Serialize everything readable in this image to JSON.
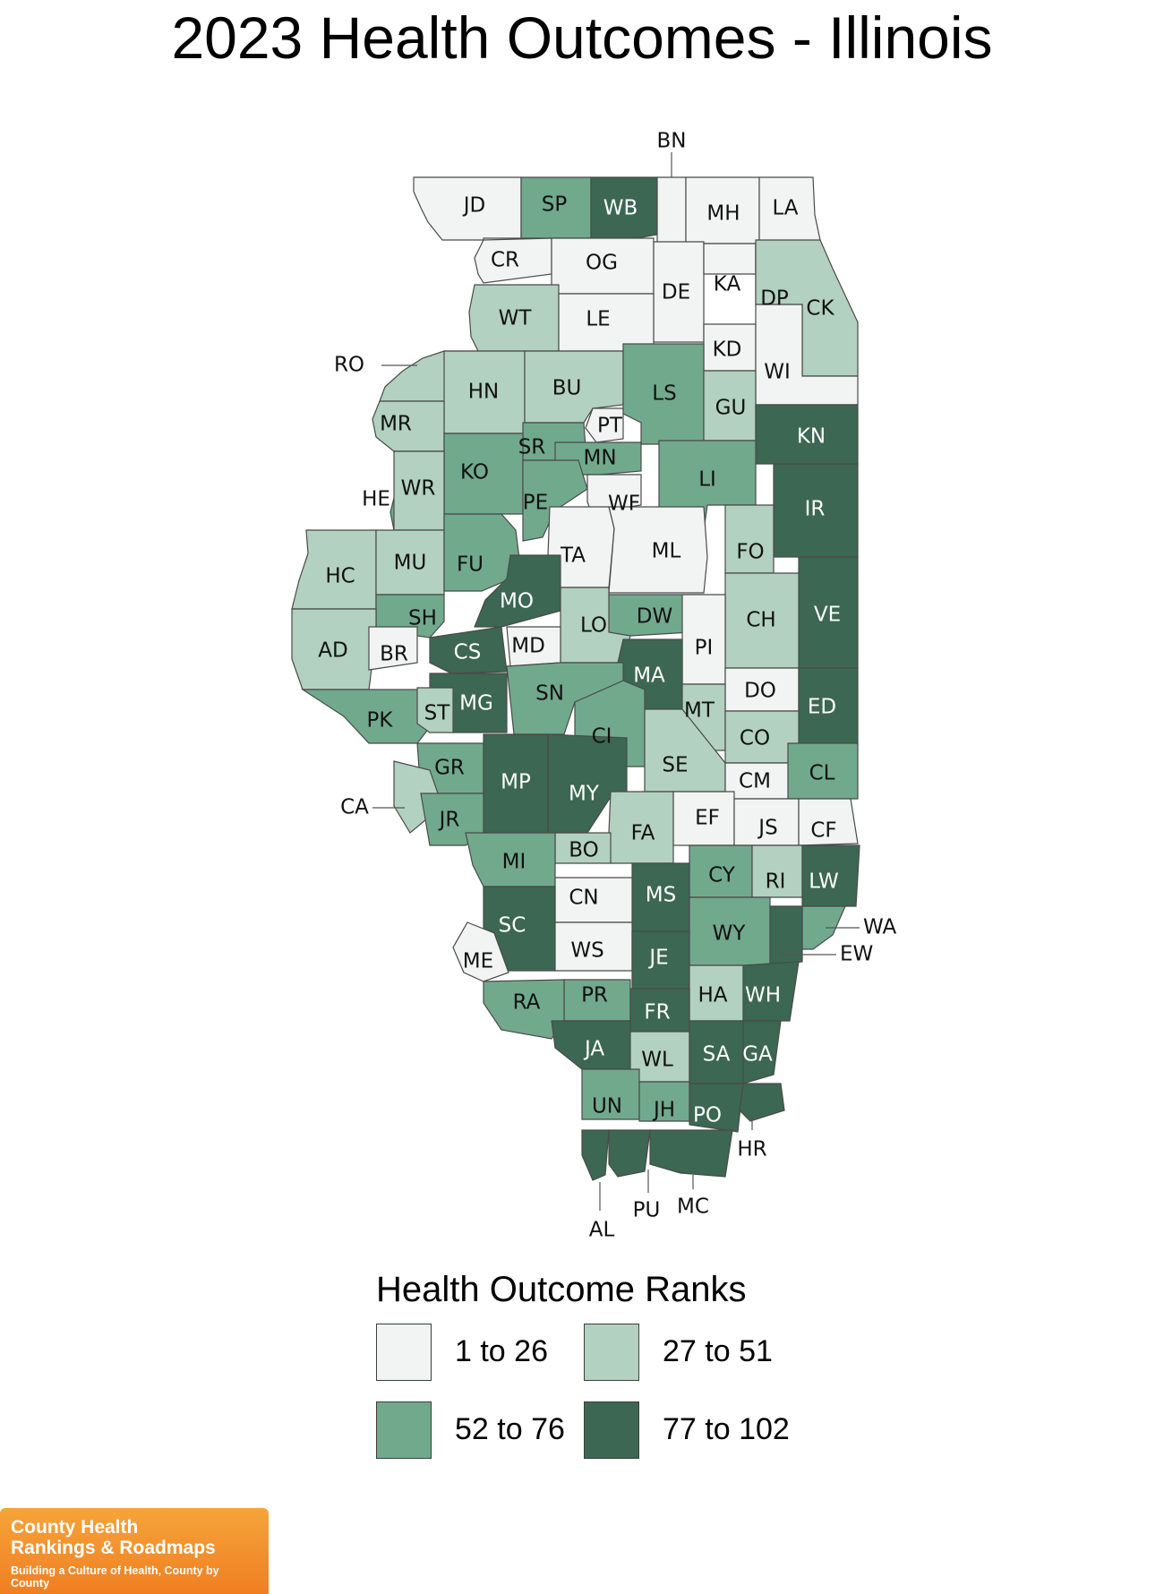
{
  "title": "2023 Health Outcomes - Illinois",
  "legend": {
    "title": "Health Outcome Ranks",
    "bins": [
      {
        "label": "1 to 26",
        "color": "#f1f4f2"
      },
      {
        "label": "27 to 51",
        "color": "#b2d1c0"
      },
      {
        "label": "52 to 76",
        "color": "#71a98c"
      },
      {
        "label": "77 to 102",
        "color": "#3c6752"
      }
    ]
  },
  "counties": [
    {
      "abbr": "JD",
      "bin": 0
    },
    {
      "abbr": "SP",
      "bin": 2
    },
    {
      "abbr": "WB",
      "bin": 3
    },
    {
      "abbr": "BN",
      "bin": 0
    },
    {
      "abbr": "MH",
      "bin": 0
    },
    {
      "abbr": "LA",
      "bin": 0
    },
    {
      "abbr": "CR",
      "bin": 0
    },
    {
      "abbr": "OG",
      "bin": 0
    },
    {
      "abbr": "DE",
      "bin": 0
    },
    {
      "abbr": "KA",
      "bin": 0
    },
    {
      "abbr": "DP",
      "bin": 0
    },
    {
      "abbr": "CK",
      "bin": 1
    },
    {
      "abbr": "WT",
      "bin": 1
    },
    {
      "abbr": "LE",
      "bin": 0
    },
    {
      "abbr": "KD",
      "bin": 0
    },
    {
      "abbr": "WI",
      "bin": 0
    },
    {
      "abbr": "RO",
      "bin": 1
    },
    {
      "abbr": "HN",
      "bin": 1
    },
    {
      "abbr": "BU",
      "bin": 1
    },
    {
      "abbr": "LS",
      "bin": 2
    },
    {
      "abbr": "GU",
      "bin": 1
    },
    {
      "abbr": "MR",
      "bin": 1
    },
    {
      "abbr": "PT",
      "bin": 0
    },
    {
      "abbr": "SR",
      "bin": 2
    },
    {
      "abbr": "KN",
      "bin": 3
    },
    {
      "abbr": "MN",
      "bin": 2
    },
    {
      "abbr": "KO",
      "bin": 2
    },
    {
      "abbr": "LI",
      "bin": 2
    },
    {
      "abbr": "HE",
      "bin": 2
    },
    {
      "abbr": "WR",
      "bin": 1
    },
    {
      "abbr": "PE",
      "bin": 2
    },
    {
      "abbr": "WF",
      "bin": 0
    },
    {
      "abbr": "IR",
      "bin": 3
    },
    {
      "abbr": "TA",
      "bin": 0
    },
    {
      "abbr": "ML",
      "bin": 0
    },
    {
      "abbr": "FO",
      "bin": 1
    },
    {
      "abbr": "HC",
      "bin": 1
    },
    {
      "abbr": "MU",
      "bin": 1
    },
    {
      "abbr": "FU",
      "bin": 2
    },
    {
      "abbr": "MO",
      "bin": 3
    },
    {
      "abbr": "VE",
      "bin": 3
    },
    {
      "abbr": "SH",
      "bin": 2
    },
    {
      "abbr": "DW",
      "bin": 2
    },
    {
      "abbr": "CH",
      "bin": 1
    },
    {
      "abbr": "LO",
      "bin": 1
    },
    {
      "abbr": "AD",
      "bin": 1
    },
    {
      "abbr": "BR",
      "bin": 0
    },
    {
      "abbr": "CS",
      "bin": 3
    },
    {
      "abbr": "MD",
      "bin": 0
    },
    {
      "abbr": "PI",
      "bin": 0
    },
    {
      "abbr": "MA",
      "bin": 3
    },
    {
      "abbr": "DO",
      "bin": 0
    },
    {
      "abbr": "ED",
      "bin": 3
    },
    {
      "abbr": "MG",
      "bin": 3
    },
    {
      "abbr": "SN",
      "bin": 2
    },
    {
      "abbr": "PK",
      "bin": 2
    },
    {
      "abbr": "ST",
      "bin": 1
    },
    {
      "abbr": "MT",
      "bin": 1
    },
    {
      "abbr": "CO",
      "bin": 1
    },
    {
      "abbr": "CI",
      "bin": 2
    },
    {
      "abbr": "SE",
      "bin": 1
    },
    {
      "abbr": "GR",
      "bin": 2
    },
    {
      "abbr": "CM",
      "bin": 0
    },
    {
      "abbr": "CL",
      "bin": 2
    },
    {
      "abbr": "MP",
      "bin": 3
    },
    {
      "abbr": "MY",
      "bin": 3
    },
    {
      "abbr": "CA",
      "bin": 1
    },
    {
      "abbr": "EF",
      "bin": 0
    },
    {
      "abbr": "JS",
      "bin": 0
    },
    {
      "abbr": "CF",
      "bin": 0
    },
    {
      "abbr": "JR",
      "bin": 2
    },
    {
      "abbr": "FA",
      "bin": 1
    },
    {
      "abbr": "BO",
      "bin": 1
    },
    {
      "abbr": "MI",
      "bin": 2
    },
    {
      "abbr": "CY",
      "bin": 2
    },
    {
      "abbr": "RI",
      "bin": 1
    },
    {
      "abbr": "LW",
      "bin": 3
    },
    {
      "abbr": "MS",
      "bin": 3
    },
    {
      "abbr": "CN",
      "bin": 0
    },
    {
      "abbr": "SC",
      "bin": 3
    },
    {
      "abbr": "WA",
      "bin": 2
    },
    {
      "abbr": "WY",
      "bin": 2
    },
    {
      "abbr": "EW",
      "bin": 3
    },
    {
      "abbr": "ME",
      "bin": 0
    },
    {
      "abbr": "WS",
      "bin": 0
    },
    {
      "abbr": "JE",
      "bin": 3
    },
    {
      "abbr": "HA",
      "bin": 1
    },
    {
      "abbr": "WH",
      "bin": 3
    },
    {
      "abbr": "PR",
      "bin": 2
    },
    {
      "abbr": "RA",
      "bin": 2
    },
    {
      "abbr": "FR",
      "bin": 3
    },
    {
      "abbr": "JA",
      "bin": 3
    },
    {
      "abbr": "WL",
      "bin": 1
    },
    {
      "abbr": "SA",
      "bin": 3
    },
    {
      "abbr": "GA",
      "bin": 3
    },
    {
      "abbr": "UN",
      "bin": 2
    },
    {
      "abbr": "JH",
      "bin": 2
    },
    {
      "abbr": "PO",
      "bin": 3
    },
    {
      "abbr": "HR",
      "bin": 3
    },
    {
      "abbr": "AL",
      "bin": 3
    },
    {
      "abbr": "PU",
      "bin": 3
    },
    {
      "abbr": "MC",
      "bin": 3
    }
  ],
  "branding": {
    "line1": "County Health",
    "line2": "Rankings & Roadmaps",
    "tagline": "Building a Culture of Health, County by County"
  }
}
